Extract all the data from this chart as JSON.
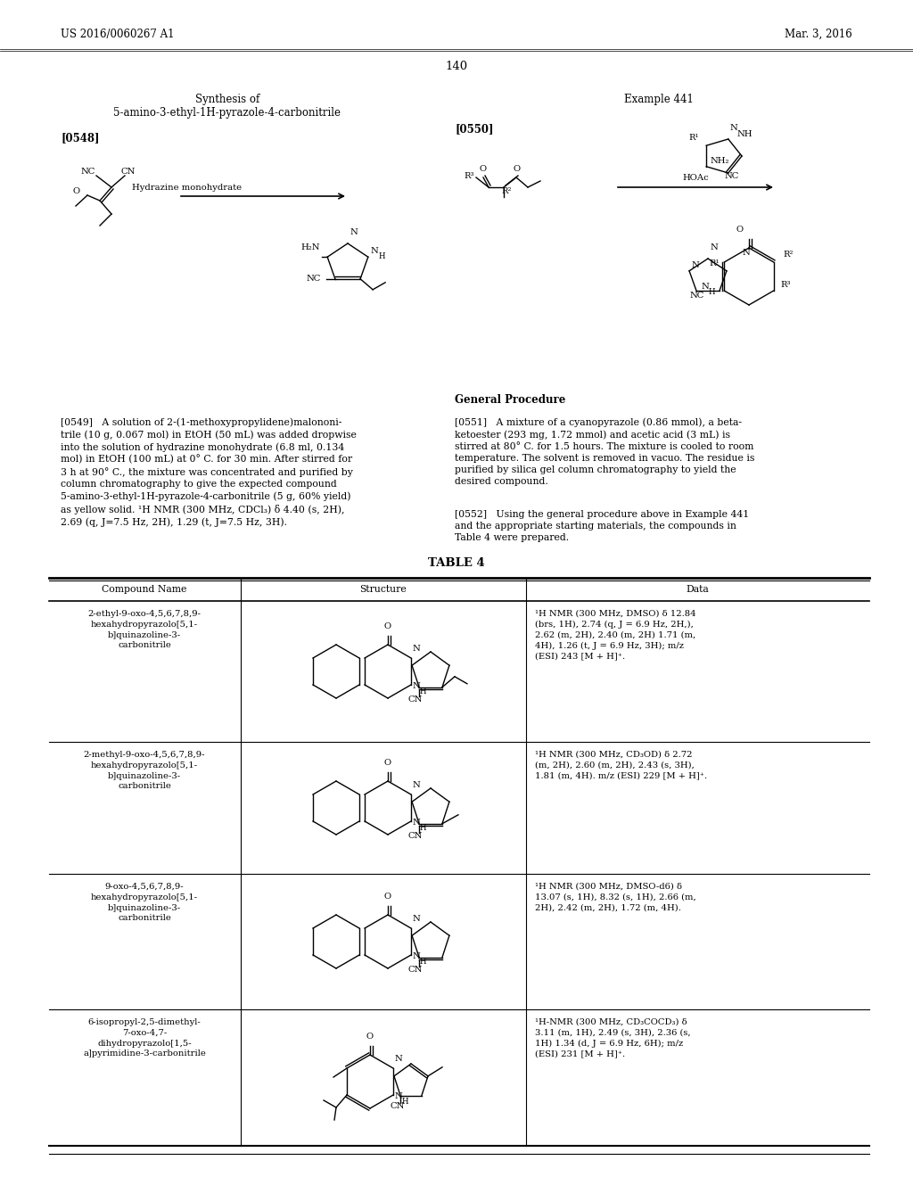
{
  "page_header_left": "US 2016/0060267 A1",
  "page_header_right": "Mar. 3, 2016",
  "page_number": "140",
  "synthesis_title_line1": "Synthesis of",
  "synthesis_title_line2": "5-amino-3-ethyl-1H-pyrazole-4-carbonitrile",
  "example_label": "Example 441",
  "ref0548": "[0548]",
  "ref0550": "[0550]",
  "ref0549_text": "[0549]   A solution of 2-(1-methoxypropylidene)malononi-\ntrile (10 g, 0.067 mol) in EtOH (50 mL) was added dropwise\ninto the solution of hydrazine monohydrate (6.8 ml, 0.134\nmol) in EtOH (100 mL) at 0° C. for 30 min. After stirred for\n3 h at 90° C., the mixture was concentrated and purified by\ncolumn chromatography to give the expected compound\n5-amino-3-ethyl-1H-pyrazole-4-carbonitrile (5 g, 60% yield)\nas yellow solid. ¹H NMR (300 MHz, CDCl₃) δ 4.40 (s, 2H),\n2.69 (q, J=7.5 Hz, 2H), 1.29 (t, J=7.5 Hz, 3H).",
  "ref0551_title": "General Procedure",
  "ref0551_text": "[0551]   A mixture of a cyanopyrazole (0.86 mmol), a beta-\nketoester (293 mg, 1.72 mmol) and acetic acid (3 mL) is\nstirred at 80° C. for 1.5 hours. The mixture is cooled to room\ntemperature. The solvent is removed in vacuo. The residue is\npurified by silica gel column chromatography to yield the\ndesired compound.",
  "ref0552_text": "[0552]   Using the general procedure above in Example 441\nand the appropriate starting materials, the compounds in\nTable 4 were prepared.",
  "table_title": "TABLE 4",
  "col_names": [
    "Compound Name",
    "Structure",
    "Data"
  ],
  "compound_names": [
    "2-ethyl-9-oxo-4,5,6,7,8,9-\nhexahydropyrazolo[5,1-\nb]quinazoline-3-\ncarbonitrile",
    "2-methyl-9-oxo-4,5,6,7,8,9-\nhexahydropyrazolo[5,1-\nb]quinazoline-3-\ncarbonitrile",
    "9-oxo-4,5,6,7,8,9-\nhexahydropyrazolo[5,1-\nb]quinazoline-3-\ncarbonitrile",
    "6-isopropyl-2,5-dimethyl-\n7-oxo-4,7-\ndihydropyrazolo[1,5-\na]pyrimidine-3-carbonitrile"
  ],
  "data_texts": [
    "¹H NMR (300 MHz, DMSO) δ 12.84\n(brs, 1H), 2.74 (q, J = 6.9 Hz, 2H,),\n2.62 (m, 2H), 2.40 (m, 2H) 1.71 (m,\n4H), 1.26 (t, J = 6.9 Hz, 3H); m/z\n(ESI) 243 [M + H]⁺.",
    "¹H NMR (300 MHz, CD₃OD) δ 2.72\n(m, 2H), 2.60 (m, 2H), 2.43 (s, 3H),\n1.81 (m, 4H). m/z (ESI) 229 [M + H]⁺.",
    "¹H NMR (300 MHz, DMSO-d6) δ\n13.07 (s, 1H), 8.32 (s, 1H), 2.66 (m,\n2H), 2.42 (m, 2H), 1.72 (m, 4H).",
    "¹H-NMR (300 MHz, CD₃COCD₃) δ\n3.11 (m, 1H), 2.49 (s, 3H), 2.36 (s,\n1H) 1.34 (d, J = 6.9 Hz, 6H); m/z\n(ESI) 231 [M + H]⁺."
  ],
  "background_color": "#ffffff",
  "text_color": "#000000"
}
